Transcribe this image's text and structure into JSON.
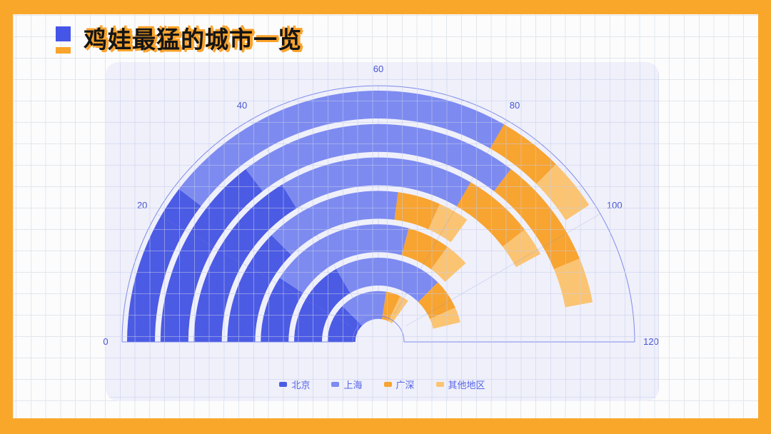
{
  "frame": {
    "color": "#F9A72B"
  },
  "title": {
    "text": "鸡娃最猛的城市一览",
    "bullet": {
      "blue": "#4455E8",
      "orange": "#F9A42B"
    },
    "text_color": "#151515",
    "shadow_color": "#FBA32A"
  },
  "chart_data": {
    "type": "polar-stacked-bar",
    "title": "鸡娃最猛的城市一览",
    "ring_count": 7,
    "ring_order": "outermost-to-innermost",
    "angle_axis": {
      "min": 0,
      "max": 120,
      "ticks": [
        0,
        20,
        40,
        60,
        80,
        100,
        120
      ],
      "span_degrees": 180
    },
    "series": [
      {
        "name": "北京",
        "color": "#4C5BE4",
        "values": [
          25,
          35,
          39,
          30,
          22,
          40,
          30
        ]
      },
      {
        "name": "上海",
        "color": "#7D8BF0",
        "values": [
          55,
          50,
          41,
          35,
          48,
          50,
          36
        ]
      },
      {
        "name": "广深",
        "color": "#F8A431",
        "values": [
          10,
          20,
          15,
          11,
          14,
          14,
          11
        ]
      },
      {
        "name": "其他地区",
        "color": "#FBC472",
        "values": [
          8,
          8,
          6,
          8,
          8,
          7,
          7
        ]
      }
    ],
    "ring_totals": [
      98,
      113,
      101,
      84,
      92,
      111,
      84
    ],
    "legend_position": "bottom"
  },
  "style_colors": {
    "axis_line": "#7380E8",
    "tick_label": "#4754D4",
    "legend_text": "#5765EA",
    "panel_bg": "#EFF0FA",
    "radial_gridline": "rgba(120,132,220,0.22)"
  }
}
